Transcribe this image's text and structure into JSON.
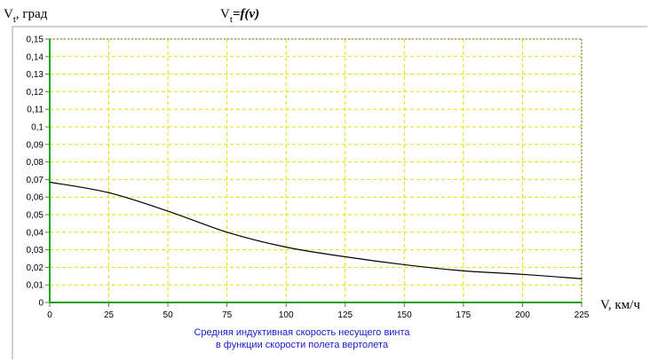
{
  "chart_data": {
    "type": "line",
    "title_base": "V",
    "title_sub": "t",
    "title_rest": "=f(v)",
    "ylabel_base": "V",
    "ylabel_sub": "t",
    "ylabel_rest": ", град",
    "xlabel": "V, км/ч",
    "caption_line1": "Средняя индуктивная скорость несущего винта",
    "caption_line2": "в функции скорости полета вертолета",
    "xlim": [
      0,
      225
    ],
    "ylim": [
      0,
      0.15
    ],
    "x_ticks": [
      "0",
      "25",
      "50",
      "75",
      "100",
      "125",
      "150",
      "175",
      "200",
      "225"
    ],
    "y_ticks": [
      "0",
      "0,01",
      "0,02",
      "0,03",
      "0,04",
      "0,05",
      "0,06",
      "0,07",
      "0,08",
      "0,09",
      "0,1",
      "0,11",
      "0,12",
      "0,13",
      "0,14",
      "0,15"
    ],
    "grid": true,
    "series": [
      {
        "x": [
          0,
          25,
          50,
          75,
          100,
          125,
          150,
          175,
          200,
          225
        ],
        "y": [
          0.0685,
          0.0625,
          0.052,
          0.04,
          0.0315,
          0.026,
          0.0215,
          0.018,
          0.016,
          0.0135
        ]
      }
    ],
    "colors": {
      "plot_border": "#22a022",
      "grid": "#e0e000",
      "line": "#000000",
      "caption": "#1a1acc"
    }
  }
}
